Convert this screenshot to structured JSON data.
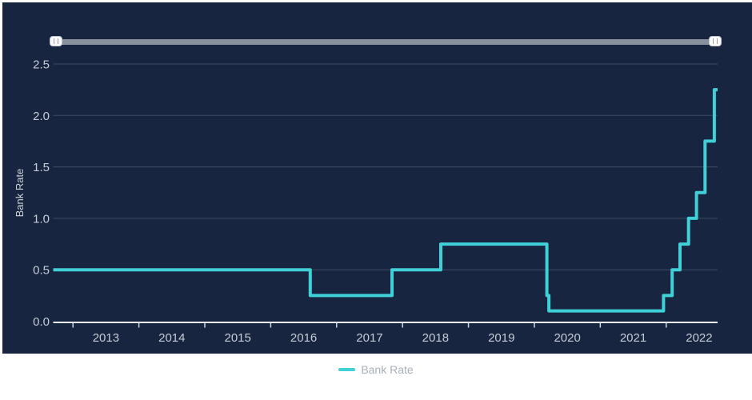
{
  "panel": {
    "background_color": "#172540"
  },
  "range_slider": {
    "track_color": "#87909d",
    "handle_grip": "II"
  },
  "chart_data": {
    "type": "line",
    "step": "after",
    "title": "",
    "xlabel": "",
    "ylabel": "Bank Rate",
    "xlim": [
      2012.7,
      2022.78
    ],
    "ylim": [
      0.0,
      2.5
    ],
    "xticks": [
      2013,
      2014,
      2015,
      2016,
      2017,
      2018,
      2019,
      2020,
      2021,
      2022
    ],
    "xtick_labels": [
      "2013",
      "2014",
      "2015",
      "2016",
      "2017",
      "2018",
      "2019",
      "2020",
      "2021",
      "2022"
    ],
    "yticks": [
      0.0,
      0.5,
      1.0,
      1.5,
      2.0,
      2.5
    ],
    "ytick_labels": [
      "0.0",
      "0.5",
      "1.0",
      "1.5",
      "2.0",
      "2.5"
    ],
    "grid": "horizontal-only",
    "legend_position": "bottom-center",
    "series": [
      {
        "name": "Bank Rate",
        "color": "#40d0d8",
        "points": [
          {
            "x": 2012.7,
            "y": 0.5
          },
          {
            "x": 2016.6,
            "y": 0.25
          },
          {
            "x": 2017.84,
            "y": 0.5
          },
          {
            "x": 2018.58,
            "y": 0.75
          },
          {
            "x": 2020.19,
            "y": 0.25
          },
          {
            "x": 2020.22,
            "y": 0.1
          },
          {
            "x": 2021.96,
            "y": 0.25
          },
          {
            "x": 2022.09,
            "y": 0.5
          },
          {
            "x": 2022.21,
            "y": 0.75
          },
          {
            "x": 2022.34,
            "y": 1.0
          },
          {
            "x": 2022.46,
            "y": 1.25
          },
          {
            "x": 2022.59,
            "y": 1.75
          },
          {
            "x": 2022.73,
            "y": 2.25
          },
          {
            "x": 2022.78,
            "y": 2.25
          }
        ]
      }
    ]
  },
  "colors": {
    "background": "#ffffff",
    "panel": "#172540",
    "line": "#40d0d8",
    "gridline": "#3e4b63",
    "axis_line": "#e8ebef",
    "tick_mark": "#d2d8de",
    "tick_label": "#c6ccd5",
    "axis_title": "#ccd2da",
    "slider_track": "#87909d",
    "slider_handle": "#fbfbfb",
    "legend_text": "#a9b0bb"
  },
  "legend": {
    "items": [
      {
        "label": "Bank Rate",
        "marker_color": "#40d0d8"
      }
    ]
  }
}
